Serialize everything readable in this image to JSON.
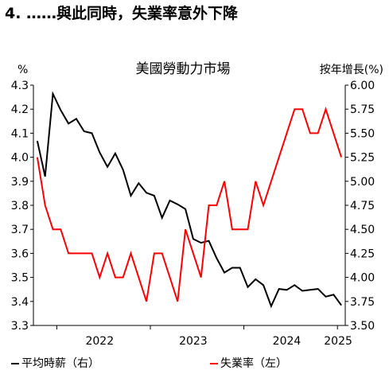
{
  "page": {
    "title": "4. ……與此同時，失業率意外下降"
  },
  "chart_data": {
    "type": "line",
    "title": "美國勞動力市場",
    "left_axis": {
      "label": "%",
      "min": 3.3,
      "max": 4.3,
      "ticks": [
        "3.3",
        "3.4",
        "3.5",
        "3.6",
        "3.7",
        "3.8",
        "3.9",
        "4.0",
        "4.1",
        "4.2",
        "4.3"
      ]
    },
    "right_axis": {
      "label": "按年增長(%)",
      "min": 3.5,
      "max": 6.0,
      "ticks": [
        "3.50",
        "3.75",
        "4.00",
        "4.25",
        "4.50",
        "4.75",
        "5.00",
        "5.25",
        "5.50",
        "5.75",
        "6.00"
      ]
    },
    "x_axis": {
      "ticks": [
        "2022",
        "2023",
        "2024",
        "2025"
      ]
    },
    "series": [
      {
        "name": "平均時薪（右）",
        "axis": "right",
        "color": "#000000",
        "x": [
          "2021-10",
          "2021-11",
          "2021-12",
          "2022-01",
          "2022-02",
          "2022-03",
          "2022-04",
          "2022-05",
          "2022-06",
          "2022-07",
          "2022-08",
          "2022-09",
          "2022-10",
          "2022-11",
          "2022-12",
          "2023-01",
          "2023-02",
          "2023-03",
          "2023-04",
          "2023-05",
          "2023-06",
          "2023-07",
          "2023-08",
          "2023-09",
          "2023-10",
          "2023-11",
          "2023-12",
          "2024-01",
          "2024-02",
          "2024-03",
          "2024-04",
          "2024-05",
          "2024-06",
          "2024-07",
          "2024-08",
          "2024-09",
          "2024-10",
          "2024-11",
          "2024-12",
          "2025-01"
        ],
        "y": [
          5.42,
          5.05,
          5.91,
          5.74,
          5.6,
          5.65,
          5.52,
          5.5,
          5.3,
          5.15,
          5.29,
          5.12,
          4.85,
          4.98,
          4.88,
          4.85,
          4.62,
          4.8,
          4.76,
          4.71,
          4.4,
          4.36,
          4.38,
          4.2,
          4.05,
          4.1,
          4.1,
          3.9,
          3.98,
          3.92,
          3.7,
          3.88,
          3.87,
          3.92,
          3.86,
          3.87,
          3.88,
          3.8,
          3.82,
          3.71
        ]
      },
      {
        "name": "失業率（左）",
        "axis": "left",
        "color": "#ff0000",
        "x": [
          "2021-10",
          "2021-11",
          "2021-12",
          "2022-01",
          "2022-02",
          "2022-03",
          "2022-04",
          "2022-05",
          "2022-06",
          "2022-07",
          "2022-08",
          "2022-09",
          "2022-10",
          "2022-11",
          "2022-12",
          "2023-01",
          "2023-02",
          "2023-03",
          "2023-04",
          "2023-05",
          "2023-06",
          "2023-07",
          "2023-08",
          "2023-09",
          "2023-10",
          "2023-11",
          "2023-12",
          "2024-01",
          "2024-02",
          "2024-03",
          "2024-04",
          "2024-05",
          "2024-06",
          "2024-07",
          "2024-08",
          "2024-09",
          "2024-10",
          "2024-11",
          "2024-12",
          "2025-01"
        ],
        "y": [
          4.0,
          3.8,
          3.7,
          3.7,
          3.6,
          3.6,
          3.6,
          3.6,
          3.5,
          3.6,
          3.5,
          3.5,
          3.6,
          3.5,
          3.4,
          3.6,
          3.6,
          3.5,
          3.4,
          3.7,
          3.6,
          3.5,
          3.8,
          3.8,
          3.9,
          3.7,
          3.7,
          3.7,
          3.9,
          3.8,
          3.9,
          4.0,
          4.1,
          4.2,
          4.2,
          4.1,
          4.1,
          4.2,
          4.1,
          4.0
        ]
      }
    ]
  }
}
